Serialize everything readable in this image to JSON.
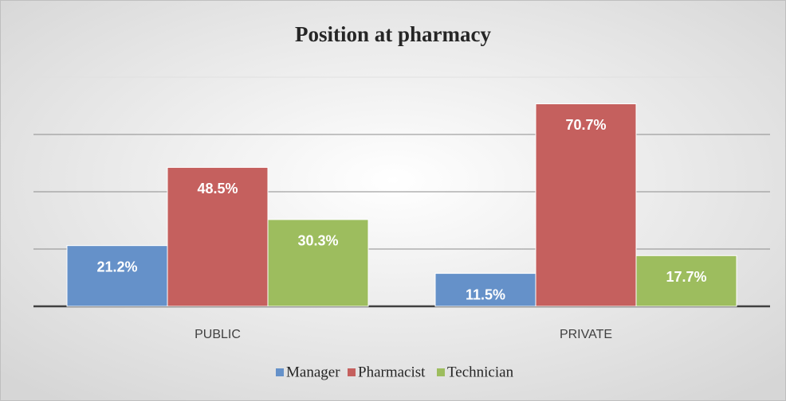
{
  "chart_data": {
    "type": "bar",
    "title": "Position at pharmacy",
    "categories": [
      "PUBLIC",
      "PRIVATE"
    ],
    "series": [
      {
        "name": "Manager",
        "color": "#6591c9",
        "values": [
          21.2,
          11.5
        ],
        "value_labels": [
          "21.2%",
          "11.5%"
        ]
      },
      {
        "name": "Pharmacist",
        "color": "#c5605e",
        "values": [
          48.5,
          70.7
        ],
        "value_labels": [
          "48.5%",
          "70.7%"
        ]
      },
      {
        "name": "Technician",
        "color": "#9dbd5e",
        "values": [
          30.3,
          17.7
        ],
        "value_labels": [
          "30.3%",
          "17.7%"
        ]
      }
    ],
    "ylim": [
      0,
      80
    ],
    "yticks": [
      0,
      20,
      40,
      60,
      80
    ],
    "grid": true,
    "legend": "bottom"
  }
}
